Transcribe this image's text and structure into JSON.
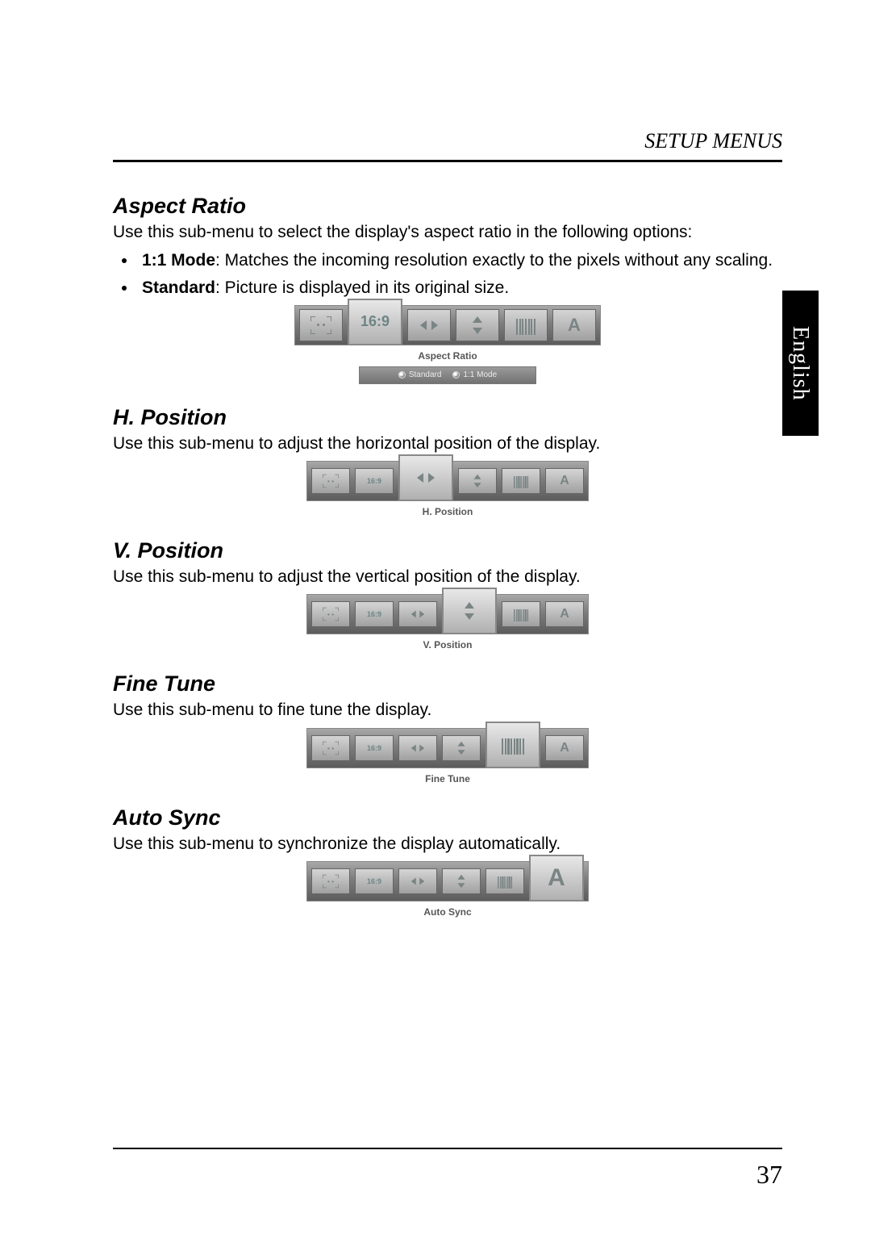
{
  "header": {
    "title": "SETUP MENUS"
  },
  "side_tab": "English",
  "page_number": "37",
  "sections": {
    "aspect": {
      "heading": "Aspect Ratio",
      "intro": "Use this sub-menu to select the display's aspect ratio in the following options:",
      "bullet1_kw": "1:1 Mode",
      "bullet1_rest": ": Matches the incoming resolution exactly to the pixels without any scaling.",
      "bullet2_kw": "Standard",
      "bullet2_rest": ": Picture is displayed in its original size.",
      "menu_label": "Aspect Ratio",
      "opt1": "Standard",
      "opt2": "1:1 Mode",
      "ratio_text_big": "16:9",
      "ratio_text_sm": "16:9",
      "a_text": "A"
    },
    "hpos": {
      "heading": "H. Position",
      "intro": "Use this sub-menu to adjust the horizontal position of the display.",
      "menu_label": "H. Position"
    },
    "vpos": {
      "heading": "V. Position",
      "intro": "Use this sub-menu to adjust the vertical position of the display.",
      "menu_label": "V. Position"
    },
    "fine": {
      "heading": "Fine Tune",
      "intro": "Use this sub-menu to fine tune the display.",
      "menu_label": "Fine Tune"
    },
    "auto": {
      "heading": "Auto Sync",
      "intro": "Use this sub-menu to synchronize the display automatically.",
      "menu_label": "Auto Sync"
    }
  },
  "styling": {
    "page_bg": "#ffffff",
    "text_color": "#000000",
    "heading_fontsize": 27,
    "body_fontsize": 21,
    "side_tab_bg": "#000000",
    "side_tab_color": "#ffffff",
    "menubar_gradient": [
      "#a8a8a8",
      "#5c5c5c"
    ],
    "icon_color": "#7a8484",
    "label_color": "#565656"
  }
}
